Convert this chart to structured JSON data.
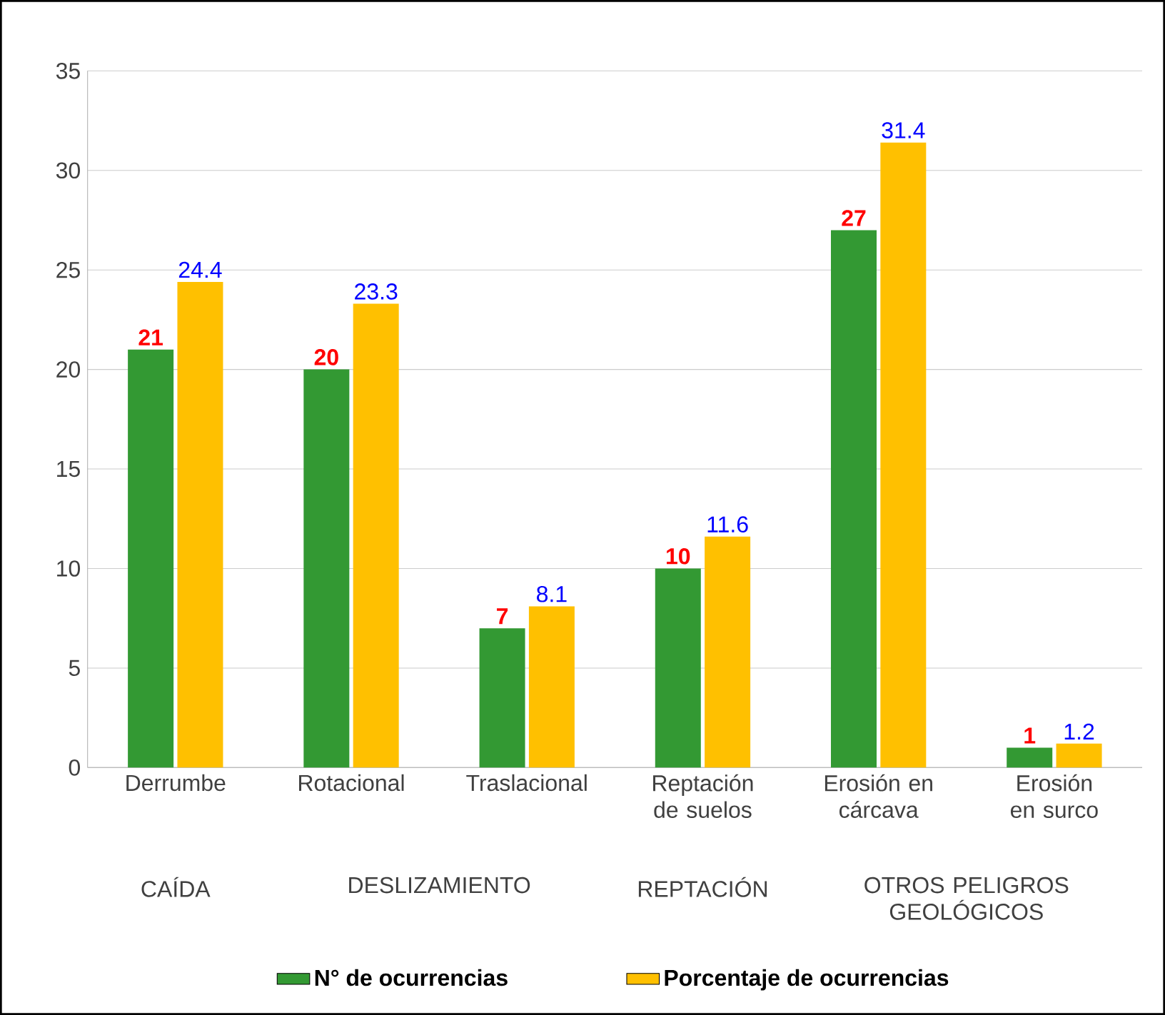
{
  "chart_data": {
    "type": "bar",
    "categories": [
      "Derrumbe",
      "Rotacional",
      "Traslacional",
      "Reptación de suelos",
      "Erosión en cárcava",
      "Erosión en surco"
    ],
    "series": [
      {
        "name": "N° de ocurrencias",
        "color": "#339933",
        "values": [
          21,
          20,
          7,
          10,
          27,
          1
        ]
      },
      {
        "name": "Porcentaje de ocurrencias",
        "color": "#ffc000",
        "values": [
          24.4,
          23.3,
          8.1,
          11.6,
          31.4,
          1.2
        ]
      }
    ],
    "annotations": [
      "CAÍDA",
      "DESLIZAMIENTO",
      "REPTACIÓN",
      "OTROS PELIGROS GEOLÓGICOS"
    ],
    "ylim": [
      0,
      35
    ],
    "yticks": [
      0,
      5,
      10,
      15,
      20,
      25,
      30,
      35
    ],
    "grid": "y",
    "legend": "bottom",
    "data_labels": true
  }
}
